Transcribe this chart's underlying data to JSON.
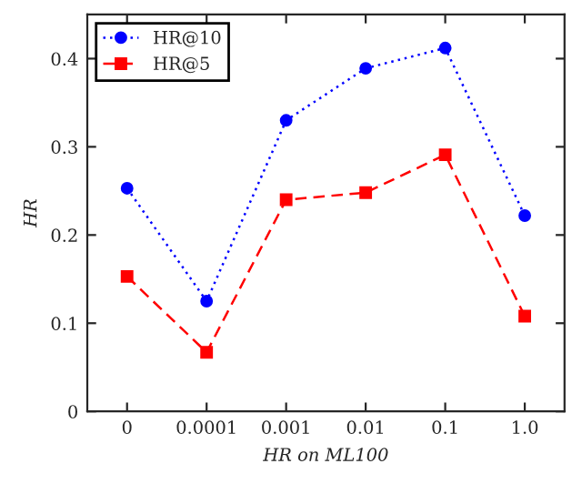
{
  "chart_data": {
    "type": "line",
    "xlabel": "HR on ML100",
    "ylabel": "HR",
    "categories": [
      "0",
      "0.0001",
      "0.001",
      "0.01",
      "0.1",
      "1.0"
    ],
    "series": [
      {
        "name": "HR@10",
        "color": "#0000ff",
        "marker": "circle",
        "line_style": "dotted",
        "values": [
          0.253,
          0.125,
          0.33,
          0.389,
          0.412,
          0.222
        ]
      },
      {
        "name": "HR@5",
        "color": "#ff0000",
        "marker": "square",
        "line_style": "dashed",
        "values": [
          0.153,
          0.067,
          0.24,
          0.248,
          0.291,
          0.108
        ]
      }
    ],
    "ylim": [
      0,
      0.45
    ],
    "yticks": [
      0,
      0.1,
      0.2,
      0.3,
      0.4
    ],
    "grid": false,
    "legend": "top left"
  }
}
